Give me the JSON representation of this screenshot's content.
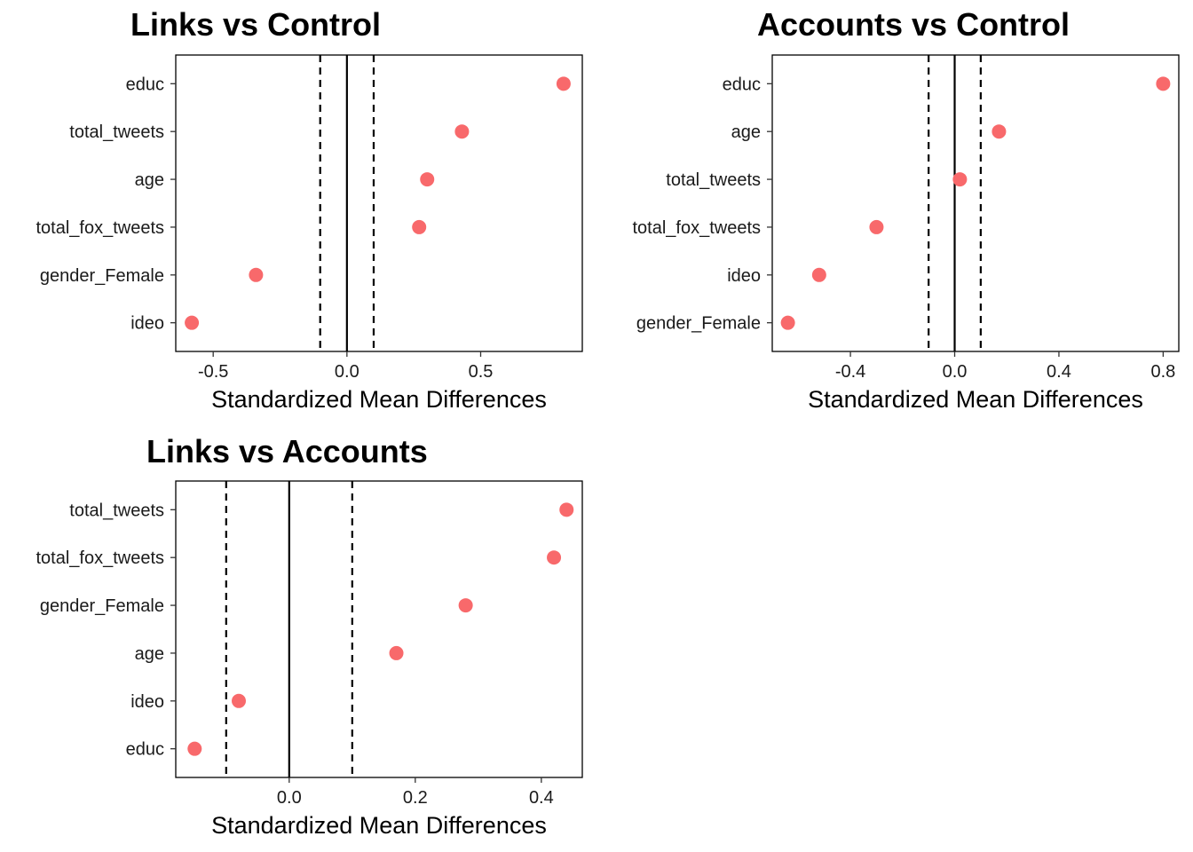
{
  "chart_data": [
    {
      "type": "scatter",
      "title": "Links vs Control",
      "xlabel": "Standardized Mean Differences",
      "ylabel": "",
      "xlim": [
        -0.64,
        0.88
      ],
      "xticks": [
        -0.5,
        0.0,
        0.5
      ],
      "xtick_labels": [
        "-0.5",
        "0.0",
        "0.5"
      ],
      "reference_lines": {
        "solid": 0,
        "dashed": [
          -0.1,
          0.1
        ]
      },
      "categories": [
        "educ",
        "total_tweets",
        "age",
        "total_fox_tweets",
        "gender_Female",
        "ideo"
      ],
      "values": [
        0.81,
        0.43,
        0.3,
        0.27,
        -0.34,
        -0.58
      ],
      "point_color": "#F8696B",
      "grid": false
    },
    {
      "type": "scatter",
      "title": "Accounts vs Control",
      "xlabel": "Standardized Mean Differences",
      "ylabel": "",
      "xlim": [
        -0.7,
        0.86
      ],
      "xticks": [
        -0.4,
        0.0,
        0.4,
        0.8
      ],
      "xtick_labels": [
        "-0.4",
        "0.0",
        "0.4",
        "0.8"
      ],
      "reference_lines": {
        "solid": 0,
        "dashed": [
          -0.1,
          0.1
        ]
      },
      "categories": [
        "educ",
        "age",
        "total_tweets",
        "total_fox_tweets",
        "ideo",
        "gender_Female"
      ],
      "values": [
        0.8,
        0.17,
        0.02,
        -0.3,
        -0.52,
        -0.64
      ],
      "point_color": "#F8696B",
      "grid": false
    },
    {
      "type": "scatter",
      "title": "Links vs Accounts",
      "xlabel": "Standardized Mean Differences",
      "ylabel": "",
      "xlim": [
        -0.18,
        0.465
      ],
      "xticks": [
        0.0,
        0.2,
        0.4
      ],
      "xtick_labels": [
        "0.0",
        "0.2",
        "0.4"
      ],
      "reference_lines": {
        "solid": 0,
        "dashed": [
          -0.1,
          0.1
        ]
      },
      "categories": [
        "total_tweets",
        "total_fox_tweets",
        "gender_Female",
        "age",
        "ideo",
        "educ"
      ],
      "values": [
        0.44,
        0.42,
        0.28,
        0.17,
        -0.08,
        -0.15
      ],
      "point_color": "#F8696B",
      "grid": false
    }
  ]
}
